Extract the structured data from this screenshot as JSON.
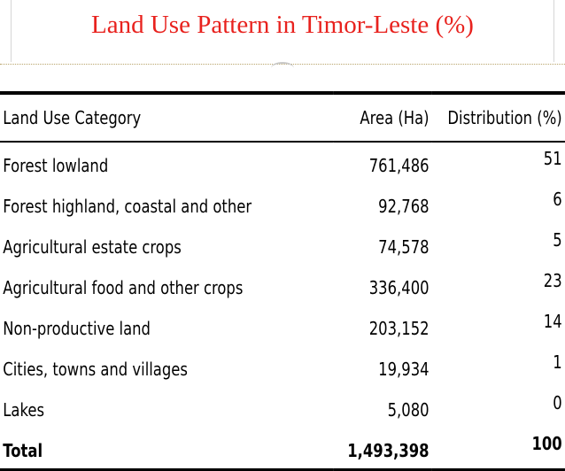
{
  "title": "Land Use Pattern in Timor-Leste (%)",
  "table": {
    "headers": {
      "category": "Land Use Category",
      "area": "Area (Ha)",
      "distribution": "Distribution (%)"
    },
    "rows": [
      {
        "category": "Forest lowland",
        "area": "761,486",
        "distribution": "51"
      },
      {
        "category": "Forest highland, coastal and other",
        "area": "92,768",
        "distribution": "6"
      },
      {
        "category": "Agricultural estate crops",
        "area": "74,578",
        "distribution": "5"
      },
      {
        "category": "Agricultural food and other crops",
        "area": "336,400",
        "distribution": "23"
      },
      {
        "category": "Non-productive land",
        "area": "203,152",
        "distribution": "14"
      },
      {
        "category": "Cities, towns and villages",
        "area": "19,934",
        "distribution": "1"
      },
      {
        "category": "Lakes",
        "area": "5,080",
        "distribution": "0"
      }
    ],
    "total": {
      "category": "Total",
      "area": "1,493,398",
      "distribution": "100"
    }
  },
  "colors": {
    "title": "#e8221e",
    "text": "#000000",
    "background": "#ffffff"
  }
}
